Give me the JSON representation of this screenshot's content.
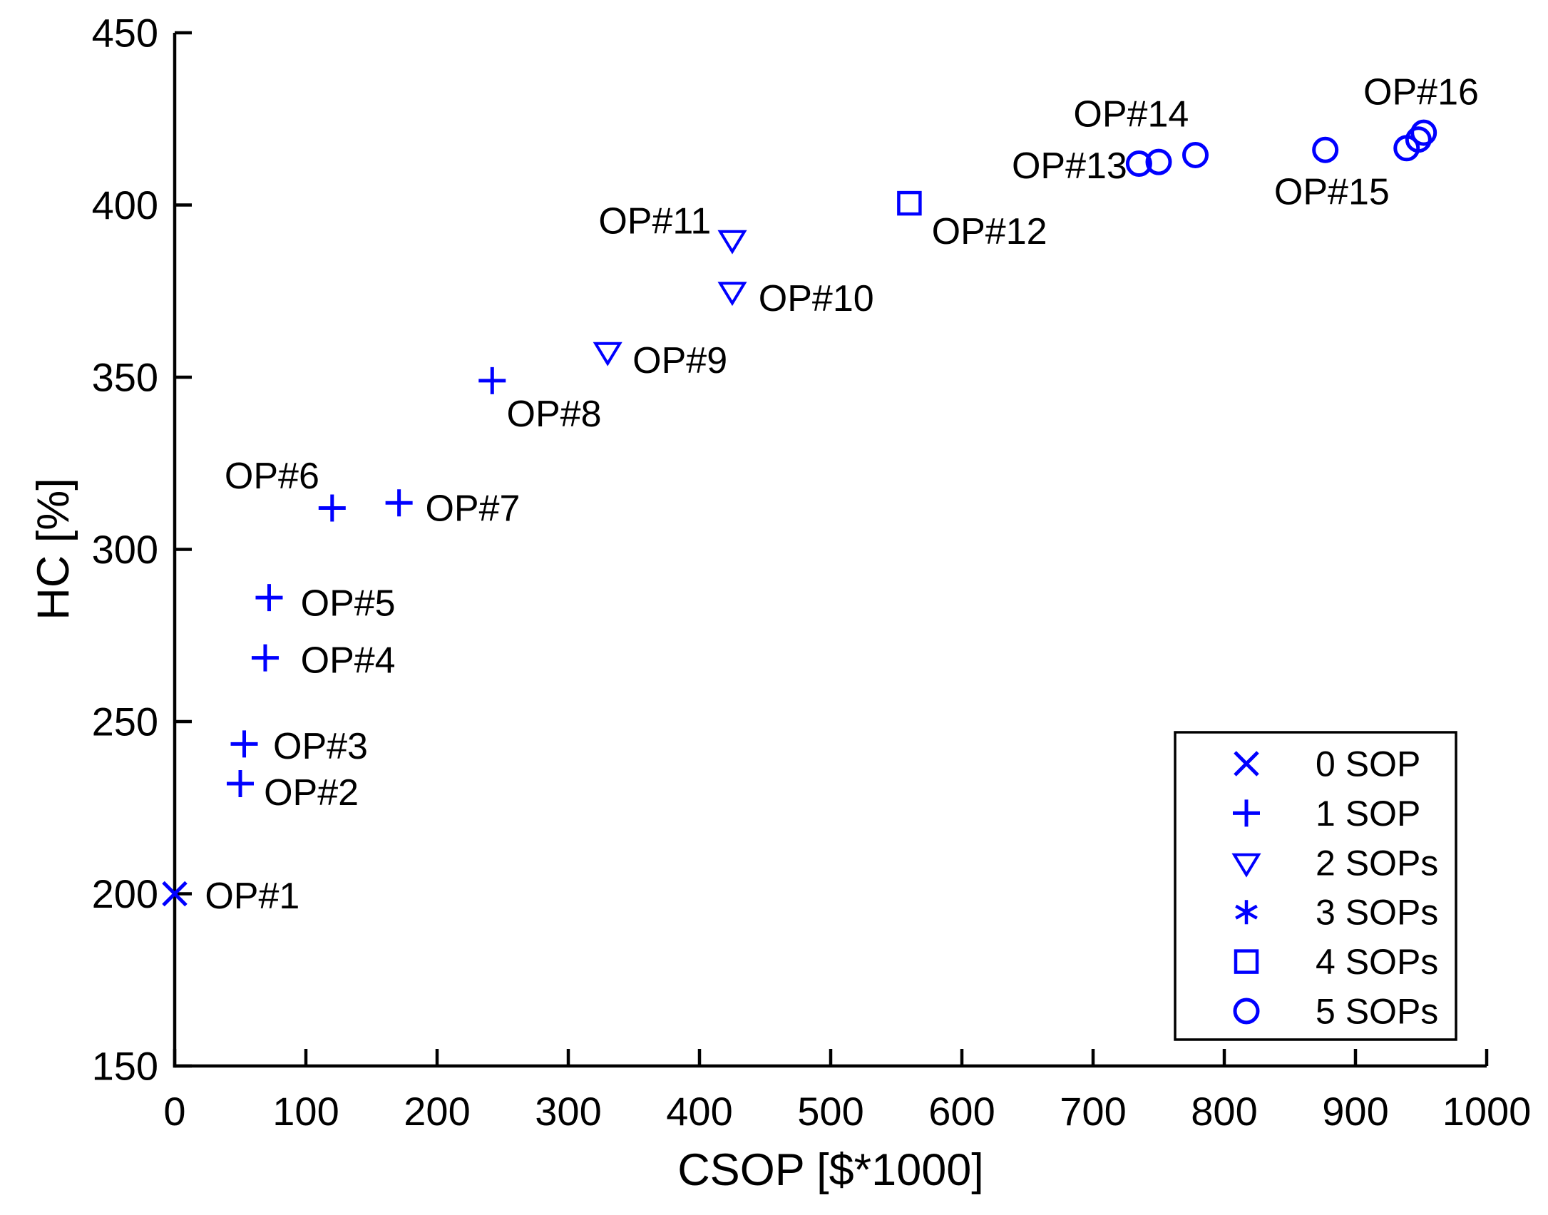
{
  "figure": {
    "background": "#ffffff",
    "marker_color": "#0000ff",
    "axis_color": "#000000",
    "text_color": "#000000"
  },
  "chart_data": {
    "type": "scatter",
    "title": "",
    "xlabel": "CSOP [$*1000]",
    "ylabel": "HC [%]",
    "xlim": [
      0,
      1000
    ],
    "ylim": [
      150,
      450
    ],
    "xticks": [
      0,
      100,
      200,
      300,
      400,
      500,
      600,
      700,
      800,
      900,
      1000
    ],
    "yticks": [
      150,
      200,
      250,
      300,
      350,
      400,
      450
    ],
    "grid": false,
    "legend_position": "bottom-right",
    "marker_color": "#0000ff",
    "series": [
      {
        "name": "0 SOP",
        "marker": "x",
        "points": [
          {
            "x": 0,
            "y": 200
          }
        ]
      },
      {
        "name": "1 SOP",
        "marker": "plus",
        "points": [
          {
            "x": 50,
            "y": 232
          },
          {
            "x": 53,
            "y": 243.5
          },
          {
            "x": 69,
            "y": 268.5
          },
          {
            "x": 72,
            "y": 286
          },
          {
            "x": 120,
            "y": 312
          },
          {
            "x": 171,
            "y": 313.5
          },
          {
            "x": 242,
            "y": 349
          }
        ]
      },
      {
        "name": "2 SOPs",
        "marker": "triangle-down",
        "points": [
          {
            "x": 330,
            "y": 357.5
          },
          {
            "x": 425,
            "y": 375
          },
          {
            "x": 425,
            "y": 390
          }
        ]
      },
      {
        "name": "3 SOPs",
        "marker": "asterisk",
        "points": []
      },
      {
        "name": "4 SOPs",
        "marker": "square",
        "points": [
          {
            "x": 560,
            "y": 400.5
          }
        ]
      },
      {
        "name": "5 SOPs",
        "marker": "circle",
        "points": [
          {
            "x": 735,
            "y": 412
          },
          {
            "x": 750,
            "y": 412.5
          },
          {
            "x": 778,
            "y": 414.5
          },
          {
            "x": 877,
            "y": 416
          },
          {
            "x": 939,
            "y": 416.5
          },
          {
            "x": 948,
            "y": 419
          },
          {
            "x": 952,
            "y": 421
          }
        ]
      }
    ],
    "annotations": [
      {
        "text": "OP#1",
        "x": 23,
        "y": 199.5,
        "anchor": "start"
      },
      {
        "text": "OP#2",
        "x": 68,
        "y": 229.5,
        "anchor": "start"
      },
      {
        "text": "OP#3",
        "x": 75,
        "y": 243,
        "anchor": "start"
      },
      {
        "text": "OP#4",
        "x": 96,
        "y": 268,
        "anchor": "start"
      },
      {
        "text": "OP#5",
        "x": 96,
        "y": 284.5,
        "anchor": "start"
      },
      {
        "text": "OP#6",
        "x": 38,
        "y": 321.5,
        "anchor": "start"
      },
      {
        "text": "OP#7",
        "x": 191,
        "y": 312,
        "anchor": "start"
      },
      {
        "text": "OP#8",
        "x": 253,
        "y": 339.5,
        "anchor": "start"
      },
      {
        "text": "OP#9",
        "x": 349,
        "y": 355,
        "anchor": "start"
      },
      {
        "text": "OP#10",
        "x": 445,
        "y": 373,
        "anchor": "start"
      },
      {
        "text": "OP#11",
        "x": 323,
        "y": 395.5,
        "anchor": "start"
      },
      {
        "text": "OP#12",
        "x": 577,
        "y": 392.5,
        "anchor": "start"
      },
      {
        "text": "OP#13",
        "x": 726,
        "y": 411.5,
        "anchor": "end"
      },
      {
        "text": "OP#14",
        "x": 729,
        "y": 426.5,
        "anchor": "middle"
      },
      {
        "text": "OP#15",
        "x": 882,
        "y": 404,
        "anchor": "middle"
      },
      {
        "text": "OP#16",
        "x": 950,
        "y": 433,
        "anchor": "middle"
      }
    ]
  }
}
